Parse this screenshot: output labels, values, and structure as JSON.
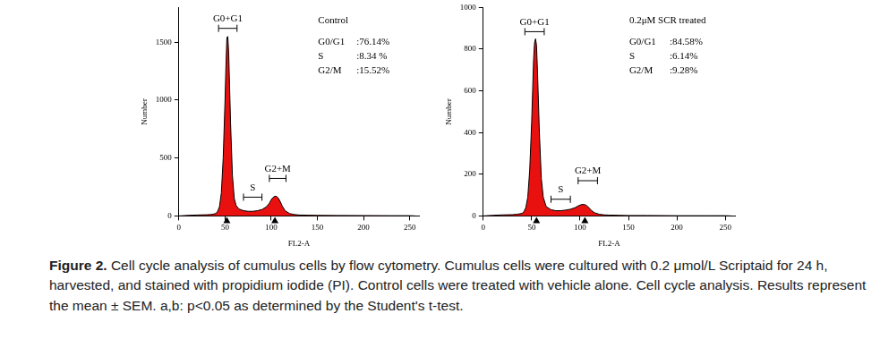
{
  "chart_data": [
    {
      "type": "area",
      "title": "Control",
      "x_label": "FL2-A",
      "y_label": "Number",
      "color": "#e8110f",
      "grid": false,
      "xlim": [
        0,
        260
      ],
      "xticks": [
        0,
        50,
        100,
        150,
        200,
        250
      ],
      "ylim": [
        0,
        1800
      ],
      "yticks": [
        0,
        500,
        1000,
        1500
      ],
      "x": [
        0,
        10,
        20,
        30,
        35,
        40,
        42,
        44,
        46,
        48,
        50,
        51,
        52,
        53,
        54,
        55,
        56,
        58,
        60,
        62,
        65,
        70,
        75,
        80,
        85,
        90,
        95,
        98,
        100,
        102,
        104,
        106,
        108,
        110,
        112,
        115,
        120,
        125,
        130,
        140,
        150,
        170,
        200,
        230,
        250,
        256
      ],
      "values": [
        0,
        5,
        8,
        10,
        12,
        20,
        40,
        80,
        200,
        500,
        1000,
        1300,
        1540,
        1550,
        1400,
        1100,
        800,
        350,
        150,
        90,
        60,
        45,
        40,
        40,
        45,
        55,
        80,
        110,
        140,
        160,
        170,
        168,
        150,
        120,
        85,
        45,
        20,
        12,
        8,
        6,
        5,
        4,
        3,
        2,
        2,
        0
      ],
      "annotations": [
        {
          "text": "G0+G1",
          "x": [
            43,
            63
          ],
          "y": 1620
        },
        {
          "text": "S",
          "x": [
            70,
            90
          ],
          "y": 162
        },
        {
          "text": "G2+M",
          "x": [
            98,
            116
          ],
          "y": 324
        }
      ],
      "peaks": [
        52,
        104
      ],
      "stats": [
        {
          "phase": "G0/G1",
          "text": ":76.14%"
        },
        {
          "phase": "S",
          "text": ":8.34 %"
        },
        {
          "phase": "G2/M",
          "text": ":15.52%"
        }
      ]
    },
    {
      "type": "area",
      "title": "0.2μM SCR treated",
      "x_label": "FL2-A",
      "y_label": "Number",
      "color": "#e8110f",
      "grid": false,
      "xlim": [
        0,
        260
      ],
      "xticks": [
        0,
        50,
        100,
        150,
        200,
        250
      ],
      "ylim": [
        0,
        1000
      ],
      "yticks": [
        0,
        200,
        400,
        600,
        800,
        1000
      ],
      "x": [
        0,
        10,
        20,
        30,
        35,
        40,
        42,
        44,
        46,
        48,
        50,
        51,
        52,
        53,
        54,
        55,
        56,
        58,
        60,
        62,
        65,
        70,
        75,
        80,
        85,
        90,
        95,
        98,
        100,
        102,
        104,
        106,
        108,
        110,
        112,
        115,
        120,
        125,
        130,
        140,
        150,
        170,
        200,
        230,
        250,
        256
      ],
      "values": [
        0,
        3,
        5,
        6,
        8,
        12,
        20,
        40,
        90,
        220,
        450,
        600,
        750,
        830,
        850,
        820,
        700,
        400,
        180,
        90,
        45,
        30,
        25,
        25,
        28,
        32,
        40,
        48,
        52,
        55,
        55,
        52,
        45,
        35,
        25,
        15,
        8,
        5,
        4,
        3,
        2,
        2,
        1,
        1,
        1,
        0
      ],
      "annotations": [
        {
          "text": "G0+G1",
          "x": [
            43,
            63
          ],
          "y": 884
        },
        {
          "text": "S",
          "x": [
            70,
            90
          ],
          "y": 80
        },
        {
          "text": "G2+M",
          "x": [
            98,
            118
          ],
          "y": 169
        }
      ],
      "peaks": [
        55,
        105
      ],
      "stats": [
        {
          "phase": "G0/G1",
          "text": ":84.58%"
        },
        {
          "phase": "S",
          "text": ":6.14%"
        },
        {
          "phase": "G2/M",
          "text": ":9.28%"
        }
      ]
    }
  ],
  "caption": {
    "label": "Figure 2.",
    "text": "Cell cycle analysis of cumulus cells by flow cytometry. Cumulus cells were cultured with 0.2 μmol/L Scriptaid for 24 h, harvested, and stained with propidium iodide (PI). Control cells were treated with vehicle alone. Cell cycle analysis. Results represent the mean ± SEM. a,b: p<0.05 as determined by the Student's t-test."
  }
}
